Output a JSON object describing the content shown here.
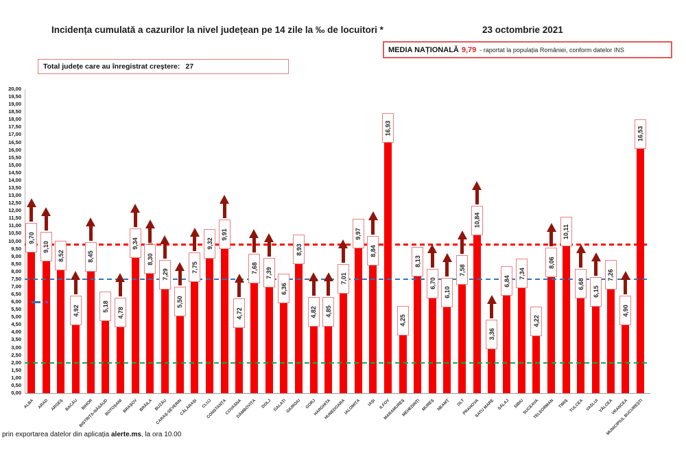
{
  "title": "Incidența cumulată a cazurilor la nivel județean pe 14 zile la ‰ de locuitori *",
  "date": "23 octombrie 2021",
  "total_box": {
    "label": "Total județe care au înregistrat creștere:",
    "value": "27"
  },
  "media_box": {
    "label": "MEDIA NAȚIONALĂ",
    "value": "9,79",
    "suffix": "-  raportat la populația României, conform datelor INS"
  },
  "footer": {
    "prefix": "prin exportarea datelor din aplicația ",
    "bold": "alerte.ms",
    "suffix": ", la ora 10.00"
  },
  "colors": {
    "bar": "#f70000",
    "arrow": "#8f150b",
    "label_border": "#e88080",
    "avg_line": "#ff0000",
    "blue_line": "#2e75b6",
    "green_line": "#00b050"
  },
  "chart_data": {
    "type": "bar",
    "title": "Incidența cumulată a cazurilor la nivel județean pe 14 zile la ‰ de locuitori *",
    "xlabel": "",
    "ylabel": "",
    "ylim": [
      0,
      20
    ],
    "ytick_step": 0.5,
    "grid": false,
    "legend": false,
    "categories": [
      "ALBA",
      "ARAD",
      "ARGEȘ",
      "BACĂU",
      "BIHOR",
      "BISTRIȚA-NĂSĂUD",
      "BOTOȘANI",
      "BRAȘOV",
      "BRĂILA",
      "BUZĂU",
      "CARAȘ-SEVERIN",
      "CĂLĂRAȘI",
      "CLUJ",
      "CONSTANȚA",
      "COVASNA",
      "DÂMBOVIȚA",
      "DOLJ",
      "GALAȚI",
      "GIURGIU",
      "GORJ",
      "HARGHITA",
      "HUNEDOARA",
      "IALOMIȚA",
      "IAȘI",
      "ILFOV",
      "MARAMUREȘ",
      "MEHEDINȚI",
      "MUREȘ",
      "NEAMȚ",
      "OLT",
      "PRAHOVA",
      "SATU MARE",
      "SĂLAJ",
      "SIBIU",
      "SUCEAVA",
      "TELEORMAN",
      "TIMIȘ",
      "TULCEA",
      "VASLUI",
      "VÂLCEA",
      "VRANCEA",
      "MUNICIPIUL BUCUREȘTI"
    ],
    "values": [
      9.7,
      9.1,
      8.52,
      4.92,
      8.45,
      5.18,
      4.78,
      9.34,
      8.3,
      7.29,
      5.5,
      7.75,
      9.32,
      9.91,
      4.72,
      7.68,
      7.39,
      6.36,
      8.93,
      4.82,
      4.85,
      7.01,
      9.97,
      8.84,
      16.93,
      4.25,
      8.13,
      6.7,
      6.1,
      7.58,
      10.84,
      3.36,
      6.84,
      7.34,
      4.22,
      8.06,
      10.11,
      6.68,
      6.15,
      7.26,
      4.9,
      16.53
    ],
    "value_labels": [
      "9,70",
      "9,10",
      "8,52",
      "4,92",
      "8,45",
      "5,18",
      "4,78",
      "9,34",
      "8,30",
      "7,29",
      "5,50",
      "7,75",
      "9,32",
      "9,91",
      "4,72",
      "7,68",
      "7,39",
      "6,36",
      "8,93",
      "4,82",
      "4,85",
      "7,01",
      "9,97",
      "8,84",
      "16,93",
      "4,25",
      "8,13",
      "6,70",
      "6,10",
      "7,58",
      "10,84",
      "3,36",
      "6,84",
      "7,34",
      "4,22",
      "8,06",
      "10,11",
      "6,68",
      "6,15",
      "7,26",
      "4,90",
      "16,53"
    ],
    "increase": [
      true,
      true,
      false,
      true,
      true,
      false,
      true,
      true,
      true,
      true,
      true,
      true,
      false,
      true,
      true,
      true,
      true,
      false,
      false,
      true,
      true,
      true,
      false,
      true,
      false,
      false,
      false,
      true,
      true,
      true,
      true,
      true,
      false,
      false,
      false,
      true,
      false,
      true,
      true,
      false,
      true,
      false
    ],
    "reference_lines": [
      {
        "name": "media-nationala",
        "value": 9.79,
        "color": "#ff0000",
        "style": "dashed"
      },
      {
        "name": "prag-albastru",
        "value": 7.5,
        "color": "#2e75b6",
        "style": "dashed"
      },
      {
        "name": "prag-verde",
        "value": 2.0,
        "color": "#00b050",
        "style": "dashed"
      }
    ],
    "left_marker": {
      "value": 6.0,
      "color": "#2e75b6"
    },
    "y_ticks": [
      "20,00",
      "19,50",
      "19,00",
      "18,50",
      "18,00",
      "17,50",
      "17,00",
      "16,50",
      "16,00",
      "15,50",
      "15,00",
      "14,50",
      "14,00",
      "13,50",
      "13,00",
      "12,50",
      "12,00",
      "11,50",
      "11,00",
      "10,50",
      "10,00",
      "9,50",
      "9,00",
      "8,50",
      "8,00",
      "7,50",
      "7,00",
      "6,50",
      "6,00",
      "5,50",
      "5,00",
      "4,50",
      "4,00",
      "3,50",
      "3,00",
      "2,50",
      "2,00",
      "1,50",
      "1,00",
      "0,50",
      "0,00"
    ]
  }
}
